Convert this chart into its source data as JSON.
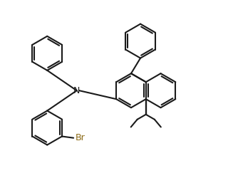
{
  "bg_color": "#ffffff",
  "line_color": "#1a1a1a",
  "label_color": "#1a1a1a",
  "br_color": "#8B6914",
  "line_width": 1.5,
  "figsize": [
    3.2,
    2.5
  ],
  "dpi": 100,
  "N_label": "N",
  "Br_label": "Br",
  "font_size_N": 9,
  "font_size_Br": 9
}
